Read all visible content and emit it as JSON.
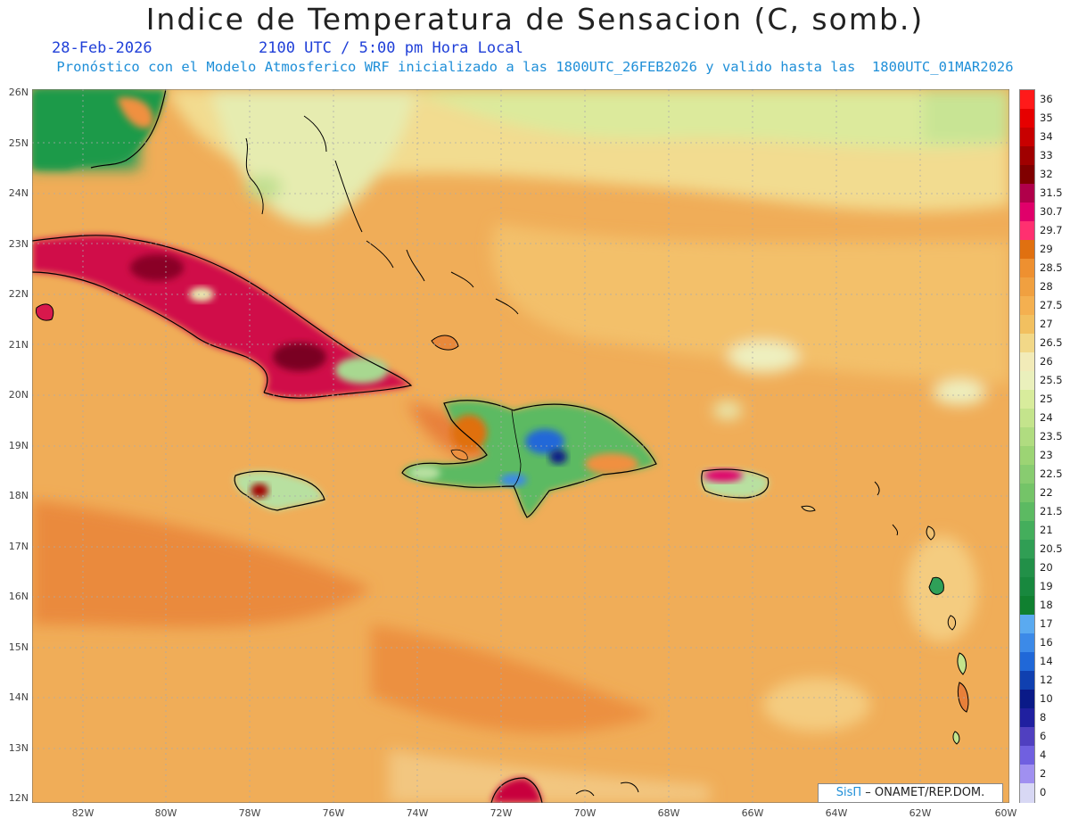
{
  "header": {
    "title": "Indice de Temperatura de Sensacion (C, somb.)",
    "date": "28-Feb-2026",
    "time": "2100 UTC / 5:00 pm Hora Local",
    "model_line": "Pronóstico con el Modelo Atmosferico WRF inicializado a las 1800UTC_26FEB2026 y valido hasta las  1800UTC_01MAR2026"
  },
  "axes": {
    "lat_labels": [
      "26N",
      "25N",
      "24N",
      "23N",
      "22N",
      "21N",
      "20N",
      "19N",
      "18N",
      "17N",
      "16N",
      "15N",
      "14N",
      "13N",
      "12N"
    ],
    "lon_labels": [
      "82W",
      "80W",
      "78W",
      "76W",
      "74W",
      "72W",
      "70W",
      "68W",
      "66W",
      "64W",
      "62W",
      "60W"
    ]
  },
  "colorbar": {
    "labels": [
      "36",
      "35",
      "34",
      "33",
      "32",
      "31.5",
      "30.7",
      "29.7",
      "29",
      "28.5",
      "28",
      "27.5",
      "27",
      "26.5",
      "26",
      "25.5",
      "25",
      "24",
      "23.5",
      "23",
      "22.5",
      "22",
      "21.5",
      "21",
      "20.5",
      "20",
      "19",
      "18",
      "17",
      "16",
      "14",
      "12",
      "10",
      "8",
      "6",
      "4",
      "2",
      "0"
    ],
    "colors": [
      "#ff1a1a",
      "#e60000",
      "#c80000",
      "#a00000",
      "#800000",
      "#b0004a",
      "#e0006a",
      "#ff3070",
      "#e07010",
      "#ee9030",
      "#f0a040",
      "#f4b050",
      "#f2c060",
      "#f2d888",
      "#f2ebb8",
      "#eaf0bc",
      "#d8ec9c",
      "#c4e48c",
      "#b0dc80",
      "#9cd474",
      "#88cc70",
      "#74c468",
      "#5cba62",
      "#44ae5c",
      "#309e54",
      "#229048",
      "#18883e",
      "#108030",
      "#5aaaf0",
      "#3c8ae8",
      "#2068d8",
      "#1040b0",
      "#0a1a88",
      "#2020a0",
      "#5040c0",
      "#7060e0",
      "#a090f0",
      "#d8d8f4"
    ]
  },
  "credit": {
    "brand": "SisΠ",
    "text": "– ONAMET/REP.DOM."
  },
  "map_colors": {
    "ocean_base": "#f0ad58",
    "cool_land": "#1e9a4a",
    "hot_land": "#c8003c",
    "coast": "#000000"
  }
}
